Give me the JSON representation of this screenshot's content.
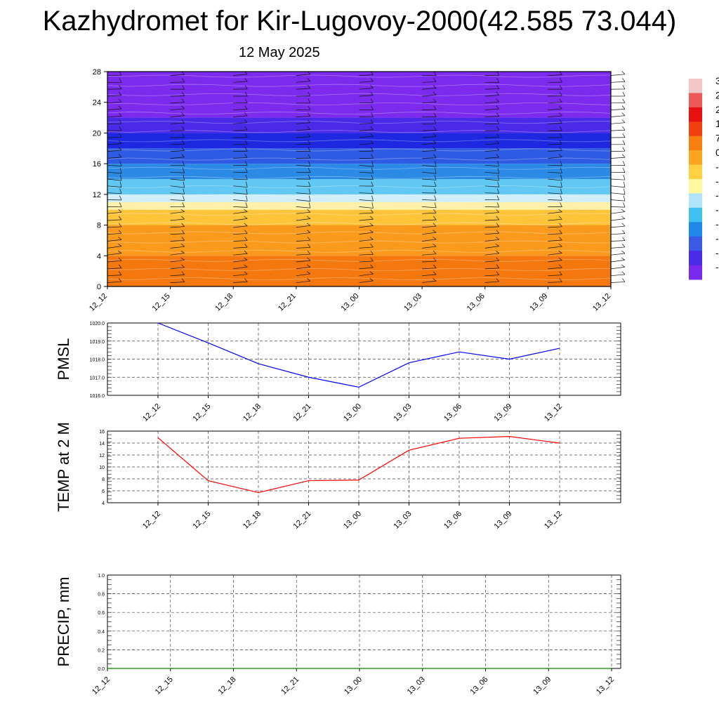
{
  "title": "Kazhydromet for Kir-Lugovoy-2000(42.585 73.044)",
  "subtitle": "12 May 2025",
  "time_labels": [
    "12_12",
    "12_15",
    "12_18",
    "12_21",
    "13_00",
    "13_03",
    "13_06",
    "13_09",
    "13_12"
  ],
  "colorbar": {
    "labels": [
      "3",
      "2",
      "2",
      "1",
      "7",
      "0",
      "-",
      "-",
      "-",
      "-",
      "-",
      "-",
      "-",
      "-"
    ],
    "colors": [
      "#f2c7c7",
      "#ee5a5a",
      "#e81010",
      "#f04010",
      "#f77f10",
      "#fba520",
      "#ffd040",
      "#fff7a0",
      "#b0e4f8",
      "#40c0f0",
      "#2088e8",
      "#3a5ae6",
      "#4a2ae8",
      "#7a2aee"
    ]
  },
  "chart_data": [
    {
      "type": "heatmap",
      "title": "",
      "xlabel": "",
      "ylabel": "",
      "x": [
        "12_12",
        "12_15",
        "12_18",
        "12_21",
        "13_00",
        "13_03",
        "13_06",
        "13_09",
        "13_12"
      ],
      "ylim": [
        0,
        28
      ],
      "yticks": [
        0,
        4,
        8,
        12,
        16,
        20,
        24,
        28
      ],
      "bands": [
        {
          "y0": 0,
          "y1": 4,
          "color": "#f5780f"
        },
        {
          "y0": 4,
          "y1": 8,
          "color": "#fa9a1c"
        },
        {
          "y0": 8,
          "y1": 10,
          "color": "#fdc43a"
        },
        {
          "y0": 10,
          "y1": 11,
          "color": "#fff0a8"
        },
        {
          "y0": 11,
          "y1": 12,
          "color": "#cfeef9"
        },
        {
          "y0": 12,
          "y1": 14,
          "color": "#60c8f2"
        },
        {
          "y0": 14,
          "y1": 16,
          "color": "#2b8ae6"
        },
        {
          "y0": 16,
          "y1": 18,
          "color": "#2f5be4"
        },
        {
          "y0": 18,
          "y1": 20,
          "color": "#1e28e0"
        },
        {
          "y0": 20,
          "y1": 22,
          "color": "#4a2ae8"
        },
        {
          "y0": 22,
          "y1": 28,
          "color": "#7b2aee"
        }
      ],
      "wind_barbs": true
    },
    {
      "type": "line",
      "ylabel": "PMSL",
      "ylim": [
        1016.0,
        1020.0
      ],
      "yticks": [
        "1016.0",
        "1017.0",
        "1018.0",
        "1019.0",
        "1020.0"
      ],
      "x": [
        "12_12",
        "12_15",
        "12_18",
        "12_21",
        "13_00",
        "13_03",
        "13_06",
        "13_09",
        "13_12"
      ],
      "series": [
        {
          "values": [
            1020.0,
            1018.9,
            1017.75,
            1017.0,
            1016.45,
            1017.8,
            1018.4,
            1018.0,
            1018.6
          ],
          "color": "#0000ff"
        }
      ],
      "grid": true
    },
    {
      "type": "line",
      "ylabel": "TEMP at 2 M",
      "ylim": [
        4,
        16
      ],
      "yticks": [
        "4",
        "6",
        "8",
        "10",
        "12",
        "14",
        "16"
      ],
      "x": [
        "12_12",
        "12_15",
        "12_18",
        "12_21",
        "13_00",
        "13_03",
        "13_06",
        "13_09",
        "13_12"
      ],
      "series": [
        {
          "values": [
            14.9,
            7.7,
            5.7,
            7.7,
            7.8,
            12.8,
            14.8,
            15.1,
            14.0
          ],
          "color": "#ff0000"
        }
      ],
      "grid": true
    },
    {
      "type": "line",
      "ylabel": "PRECIP, mm",
      "ylim": [
        0.0,
        1.0
      ],
      "yticks": [
        "0.0",
        "0.2",
        "0.4",
        "0.6",
        "0.8",
        "1.0"
      ],
      "x": [
        "12_12",
        "12_15",
        "12_18",
        "12_21",
        "13_00",
        "13_03",
        "13_06",
        "13_09",
        "13_12"
      ],
      "series": [
        {
          "values": [
            0,
            0,
            0,
            0,
            0,
            0,
            0,
            0,
            0
          ],
          "color": "#008000"
        }
      ],
      "grid": true
    }
  ]
}
